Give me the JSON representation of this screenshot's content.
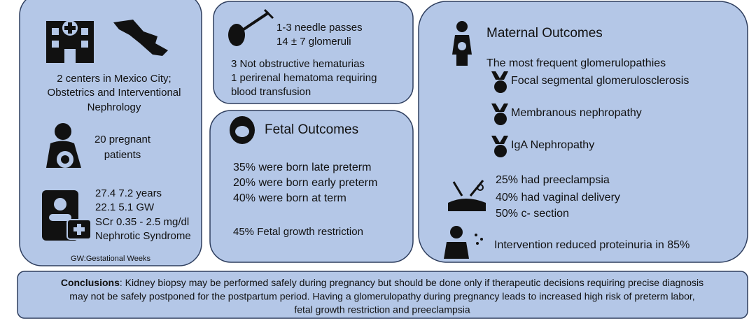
{
  "setting": {
    "lines": [
      "2 centers in Mexico City;",
      "Obstetrics and Interventional",
      "Nephrology"
    ]
  },
  "patients": {
    "lines": [
      "20 pregnant",
      "patients"
    ]
  },
  "demographics": {
    "lines": [
      "27.4    7.2 years",
      "22.1    5.1 GW",
      "SCr 0.35 - 2.5 mg/dl",
      "Nephrotic Syndrome"
    ],
    "footnote": "GW:Gestational Weeks"
  },
  "biopsy": {
    "lines": [
      "1-3 needle passes",
      "14 ± 7 glomeruli"
    ],
    "complications": [
      "3 Not obstructive hematurias",
      "1 perirenal hematoma requiring",
      "blood transfusion"
    ]
  },
  "fetal": {
    "title": "Fetal Outcomes",
    "items": [
      "35% were born late preterm",
      "20% were born early preterm",
      "40% were born at term"
    ],
    "note": "45% Fetal growth restriction"
  },
  "maternal": {
    "title": "Maternal Outcomes",
    "subtitle": "The most frequent glomerulopathies",
    "glomerulopathies": [
      "Focal segmental glomerulosclerosis",
      "Membranous nephropathy",
      "IgA Nephropathy"
    ],
    "delivery": [
      "25% had preeclampsia",
      "40% had vaginal delivery",
      "50% c- section"
    ],
    "intervention": "Intervention reduced proteinuria in 85%"
  },
  "conclusions": {
    "label": "Conclusions",
    "lines": [
      ": Kidney biopsy may be performed safely during pregnancy but should be done only if therapeutic decisions requiring precise diagnosis",
      "may not be safely postponed for the postpartum period.  Having a glomerulopathy during pregnancy leads to increased high risk of  preterm labor,",
      "fetal growth restriction and  preeclampsia"
    ]
  }
}
